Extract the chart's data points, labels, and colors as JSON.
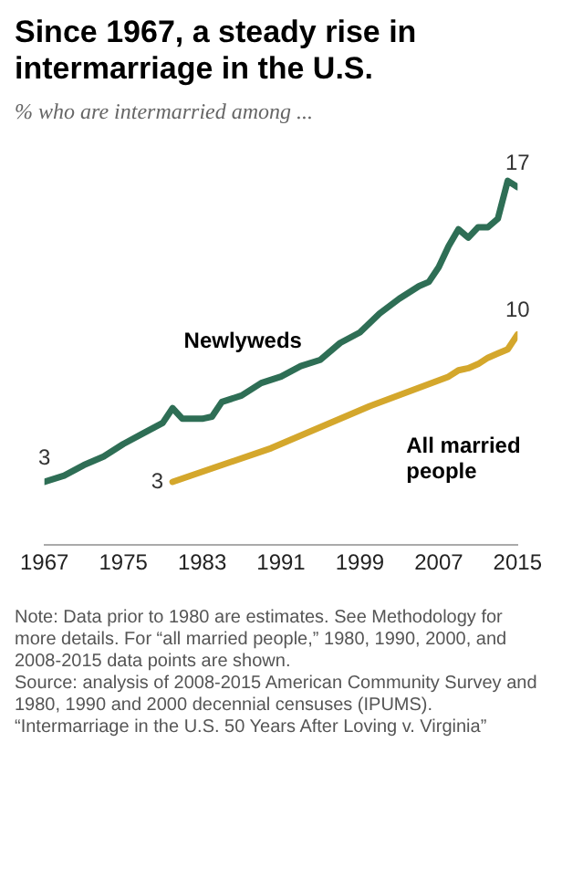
{
  "chart_data": {
    "type": "line",
    "title": "Since 1967, a steady rise in intermarriage in the U.S.",
    "subtitle": "% who are intermarried among ...",
    "xlim": [
      1967,
      2015
    ],
    "xticks": [
      1967,
      1975,
      1983,
      1991,
      1999,
      2007,
      2015
    ],
    "tick_labels": "x",
    "grid": false,
    "legend": false,
    "marker": "none",
    "series": [
      {
        "name": "Newlyweds",
        "color": "#2e6e55",
        "x": [
          1967,
          1969,
          1971,
          1973,
          1975,
          1977,
          1979,
          1980,
          1981,
          1983,
          1984,
          1985,
          1987,
          1989,
          1991,
          1993,
          1995,
          1997,
          1999,
          2001,
          2003,
          2005,
          2006,
          2007,
          2008,
          2009,
          2010,
          2011,
          2012,
          2013,
          2014,
          2015
        ],
        "values": [
          3,
          3.3,
          3.8,
          4.2,
          4.8,
          5.3,
          5.8,
          6.5,
          6,
          6,
          6.1,
          6.8,
          7.1,
          7.7,
          8,
          8.5,
          8.8,
          9.6,
          10.1,
          11,
          11.7,
          12.3,
          12.5,
          13.2,
          14.2,
          15,
          14.6,
          15.1,
          15.1,
          15.5,
          17.3,
          17
        ],
        "value_labels": [
          "3",
          null,
          null,
          null,
          null,
          null,
          null,
          null,
          null,
          null,
          null,
          null,
          null,
          null,
          null,
          null,
          null,
          null,
          null,
          null,
          null,
          null,
          null,
          null,
          null,
          null,
          null,
          null,
          null,
          null,
          null,
          "17"
        ]
      },
      {
        "name": "All married people",
        "color": "#d4a72c",
        "x": [
          1980,
          1990,
          2000,
          2008,
          2009,
          2010,
          2011,
          2012,
          2013,
          2014,
          2015
        ],
        "values": [
          3,
          4.6,
          6.6,
          8,
          8.3,
          8.4,
          8.6,
          8.9,
          9.1,
          9.3,
          10
        ],
        "value_labels": [
          "3",
          null,
          null,
          null,
          null,
          null,
          null,
          null,
          null,
          null,
          "10"
        ]
      }
    ],
    "annotations": [
      "Note: Data prior to 1980 are estimates. See Methodology for more details. For “all married people,” 1980, 1990, 2000, and 2008-2015 data points are shown.",
      "Source: analysis of 2008-2015 American Community Survey and 1980, 1990 and 2000 decennial censuses (IPUMS).",
      "“Intermarriage in the U.S. 50 Years After Loving v. Virginia”"
    ]
  }
}
